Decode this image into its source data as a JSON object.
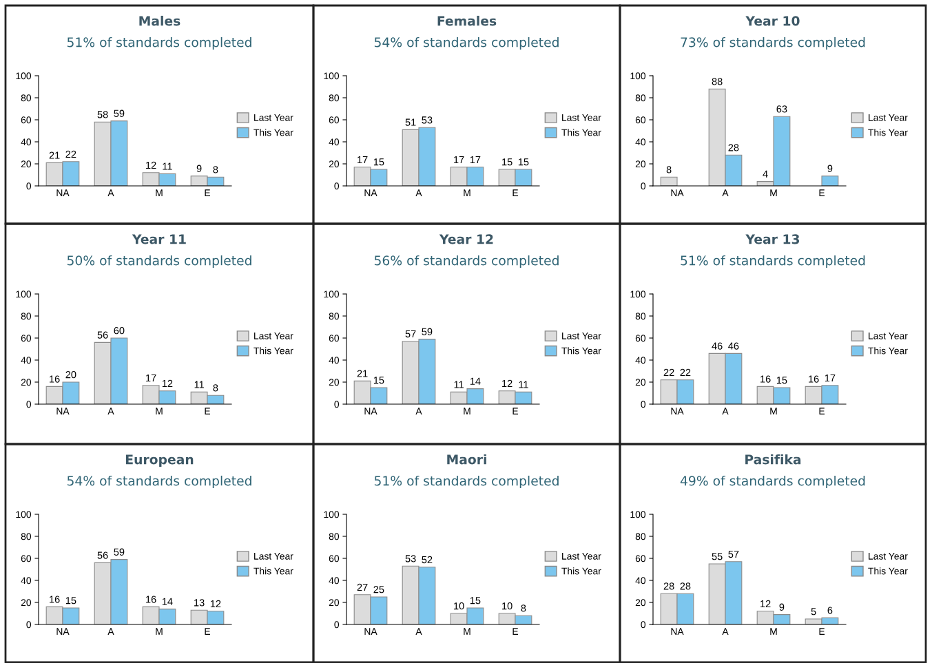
{
  "chart_data": [
    {
      "type": "bar",
      "title": "Males",
      "subtitle": "51% of standards completed",
      "categories": [
        "NA",
        "A",
        "M",
        "E"
      ],
      "ylim": [
        0,
        100
      ],
      "yticks": [
        0,
        20,
        40,
        60,
        80,
        100
      ],
      "legend": "right",
      "data_labels": true,
      "series": [
        {
          "name": "Last Year",
          "color": "#dcdcdc",
          "values": [
            21,
            58,
            12,
            9
          ]
        },
        {
          "name": "This Year",
          "color": "#7cc6ee",
          "values": [
            22,
            59,
            11,
            8
          ]
        }
      ]
    },
    {
      "type": "bar",
      "title": "Females",
      "subtitle": "54% of standards completed",
      "categories": [
        "NA",
        "A",
        "M",
        "E"
      ],
      "ylim": [
        0,
        100
      ],
      "yticks": [
        0,
        20,
        40,
        60,
        80,
        100
      ],
      "legend": "right",
      "data_labels": true,
      "series": [
        {
          "name": "Last Year",
          "color": "#dcdcdc",
          "values": [
            17,
            51,
            17,
            15
          ]
        },
        {
          "name": "This Year",
          "color": "#7cc6ee",
          "values": [
            15,
            53,
            17,
            15
          ]
        }
      ]
    },
    {
      "type": "bar",
      "title": "Year 10",
      "subtitle": "73% of standards completed",
      "categories": [
        "NA",
        "A",
        "M",
        "E"
      ],
      "ylim": [
        0,
        100
      ],
      "yticks": [
        0,
        20,
        40,
        60,
        80,
        100
      ],
      "legend": "right",
      "data_labels": true,
      "series": [
        {
          "name": "Last Year",
          "color": "#dcdcdc",
          "values": [
            8,
            88,
            4,
            null
          ]
        },
        {
          "name": "This Year",
          "color": "#7cc6ee",
          "values": [
            null,
            28,
            63,
            9
          ]
        }
      ]
    },
    {
      "type": "bar",
      "title": "Year 11",
      "subtitle": "50% of standards completed",
      "categories": [
        "NA",
        "A",
        "M",
        "E"
      ],
      "ylim": [
        0,
        100
      ],
      "yticks": [
        0,
        20,
        40,
        60,
        80,
        100
      ],
      "legend": "right",
      "data_labels": true,
      "series": [
        {
          "name": "Last Year",
          "color": "#dcdcdc",
          "values": [
            16,
            56,
            17,
            11
          ]
        },
        {
          "name": "This Year",
          "color": "#7cc6ee",
          "values": [
            20,
            60,
            12,
            8
          ]
        }
      ]
    },
    {
      "type": "bar",
      "title": "Year 12",
      "subtitle": "56% of standards completed",
      "categories": [
        "NA",
        "A",
        "M",
        "E"
      ],
      "ylim": [
        0,
        100
      ],
      "yticks": [
        0,
        20,
        40,
        60,
        80,
        100
      ],
      "legend": "right",
      "data_labels": true,
      "series": [
        {
          "name": "Last Year",
          "color": "#dcdcdc",
          "values": [
            21,
            57,
            11,
            12
          ]
        },
        {
          "name": "This Year",
          "color": "#7cc6ee",
          "values": [
            15,
            59,
            14,
            11
          ]
        }
      ]
    },
    {
      "type": "bar",
      "title": "Year 13",
      "subtitle": "51% of standards completed",
      "categories": [
        "NA",
        "A",
        "M",
        "E"
      ],
      "ylim": [
        0,
        100
      ],
      "yticks": [
        0,
        20,
        40,
        60,
        80,
        100
      ],
      "legend": "right",
      "data_labels": true,
      "series": [
        {
          "name": "Last Year",
          "color": "#dcdcdc",
          "values": [
            22,
            46,
            16,
            16
          ]
        },
        {
          "name": "This Year",
          "color": "#7cc6ee",
          "values": [
            22,
            46,
            15,
            17
          ]
        }
      ]
    },
    {
      "type": "bar",
      "title": "European",
      "subtitle": "54% of standards completed",
      "categories": [
        "NA",
        "A",
        "M",
        "E"
      ],
      "ylim": [
        0,
        100
      ],
      "yticks": [
        0,
        20,
        40,
        60,
        80,
        100
      ],
      "legend": "right",
      "data_labels": true,
      "series": [
        {
          "name": "Last Year",
          "color": "#dcdcdc",
          "values": [
            16,
            56,
            16,
            13
          ]
        },
        {
          "name": "This Year",
          "color": "#7cc6ee",
          "values": [
            15,
            59,
            14,
            12
          ]
        }
      ]
    },
    {
      "type": "bar",
      "title": "Maori",
      "subtitle": "51% of standards completed",
      "categories": [
        "NA",
        "A",
        "M",
        "E"
      ],
      "ylim": [
        0,
        100
      ],
      "yticks": [
        0,
        20,
        40,
        60,
        80,
        100
      ],
      "legend": "right",
      "data_labels": true,
      "series": [
        {
          "name": "Last Year",
          "color": "#dcdcdc",
          "values": [
            27,
            53,
            10,
            10
          ]
        },
        {
          "name": "This Year",
          "color": "#7cc6ee",
          "values": [
            25,
            52,
            15,
            8
          ]
        }
      ]
    },
    {
      "type": "bar",
      "title": "Pasifika",
      "subtitle": "49% of standards completed",
      "categories": [
        "NA",
        "A",
        "M",
        "E"
      ],
      "ylim": [
        0,
        100
      ],
      "yticks": [
        0,
        20,
        40,
        60,
        80,
        100
      ],
      "legend": "right",
      "data_labels": true,
      "series": [
        {
          "name": "Last Year",
          "color": "#dcdcdc",
          "values": [
            28,
            55,
            12,
            5
          ]
        },
        {
          "name": "This Year",
          "color": "#7cc6ee",
          "values": [
            28,
            57,
            9,
            6
          ]
        }
      ]
    }
  ]
}
